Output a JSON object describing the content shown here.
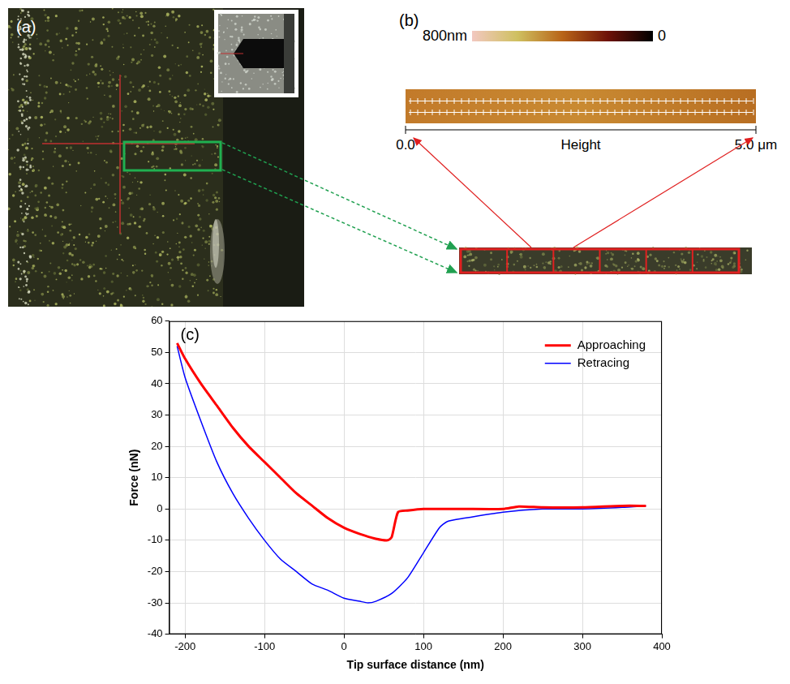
{
  "panels": {
    "a": {
      "label": "(a)"
    },
    "b": {
      "label": "(b)",
      "colorbar": {
        "range": [
          0,
          800
        ],
        "ticks": [
          {
            "value": 800,
            "label": "800nm"
          },
          0
        ]
      },
      "scale": {
        "title": "Height",
        "range": [
          0,
          5
        ],
        "ticks": [
          {
            "value": 0,
            "label": "0.0"
          },
          {
            "value": 5,
            "label": "5.0 μm"
          }
        ]
      }
    }
  },
  "chart_data": {
    "type": "line",
    "title": "(c)",
    "x_label": "Tip surface distance (nm)",
    "y_label": "Force (nN)",
    "xlim": [
      -220,
      400
    ],
    "xticks": [
      -200,
      -100,
      0,
      100,
      200,
      300,
      400
    ],
    "ylim": [
      -40,
      60
    ],
    "yticks": [
      -40,
      -30,
      -20,
      -10,
      0,
      10,
      20,
      30,
      40,
      50,
      60
    ],
    "grid": true,
    "legend": "upper right",
    "series": [
      {
        "name": "Approaching",
        "color": "#ff0000",
        "x": [
          -210,
          -200,
          -180,
          -160,
          -140,
          -120,
          -100,
          -80,
          -60,
          -40,
          -20,
          0,
          20,
          40,
          55,
          60,
          68,
          80,
          100,
          150,
          200,
          220,
          250,
          300,
          350,
          380
        ],
        "values": [
          53,
          48,
          40,
          33,
          26,
          20,
          15,
          10,
          5,
          1,
          -3,
          -6,
          -8,
          -9.5,
          -10,
          -9,
          -1,
          -0.5,
          0,
          0,
          0,
          0.8,
          0.5,
          0.5,
          1,
          1
        ]
      },
      {
        "name": "Retracing",
        "color": "#0000ff",
        "x": [
          -210,
          -200,
          -180,
          -160,
          -140,
          -120,
          -100,
          -80,
          -60,
          -40,
          -20,
          0,
          20,
          30,
          40,
          60,
          80,
          100,
          120,
          130,
          150,
          200,
          250,
          300,
          350,
          380
        ],
        "values": [
          52,
          42,
          28,
          15,
          5,
          -3,
          -10,
          -16,
          -20,
          -24,
          -26,
          -28.5,
          -29.5,
          -30,
          -29.5,
          -27,
          -22,
          -14,
          -6,
          -4,
          -3,
          -1,
          0,
          0,
          0.5,
          1
        ]
      }
    ]
  }
}
